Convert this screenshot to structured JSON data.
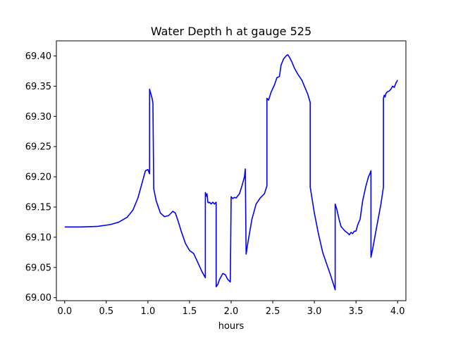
{
  "chart_data": {
    "type": "line",
    "title": "Water Depth h at gauge 525",
    "xlabel": "hours",
    "ylabel": "",
    "xlim": [
      -0.1,
      4.1
    ],
    "ylim": [
      68.995,
      69.425
    ],
    "xticks": [
      0.0,
      0.5,
      1.0,
      1.5,
      2.0,
      2.5,
      3.0,
      3.5,
      4.0
    ],
    "xtick_labels": [
      "0.0",
      "0.5",
      "1.0",
      "1.5",
      "2.0",
      "2.5",
      "3.0",
      "3.5",
      "4.0"
    ],
    "yticks": [
      69.0,
      69.05,
      69.1,
      69.15,
      69.2,
      69.25,
      69.3,
      69.35,
      69.4
    ],
    "ytick_labels": [
      "69.00",
      "69.05",
      "69.10",
      "69.15",
      "69.20",
      "69.25",
      "69.30",
      "69.35",
      "69.40"
    ],
    "grid": false,
    "series": [
      {
        "color": "#0000ff",
        "x": [
          0.0,
          0.2,
          0.4,
          0.55,
          0.65,
          0.75,
          0.82,
          0.88,
          0.93,
          0.97,
          1.0,
          1.02,
          1.02,
          1.05,
          1.06,
          1.07,
          1.1,
          1.15,
          1.2,
          1.25,
          1.3,
          1.33,
          1.36,
          1.4,
          1.45,
          1.5,
          1.55,
          1.6,
          1.65,
          1.69,
          1.69,
          1.7,
          1.71,
          1.72,
          1.73,
          1.74,
          1.76,
          1.78,
          1.8,
          1.82,
          1.82,
          1.84,
          1.86,
          1.9,
          1.93,
          1.96,
          1.99,
          2.0,
          2.02,
          2.04,
          2.06,
          2.1,
          2.13,
          2.16,
          2.17,
          2.18,
          2.2,
          2.25,
          2.3,
          2.35,
          2.4,
          2.43,
          2.43,
          2.45,
          2.48,
          2.52,
          2.55,
          2.58,
          2.6,
          2.63,
          2.66,
          2.68,
          2.7,
          2.73,
          2.76,
          2.8,
          2.85,
          2.88,
          2.92,
          2.95,
          2.95,
          3.0,
          3.05,
          3.1,
          3.15,
          3.2,
          3.25,
          3.25,
          3.27,
          3.28,
          3.3,
          3.32,
          3.35,
          3.37,
          3.4,
          3.42,
          3.44,
          3.46,
          3.48,
          3.5,
          3.52,
          3.55,
          3.58,
          3.62,
          3.65,
          3.67,
          3.68,
          3.68,
          3.7,
          3.75,
          3.8,
          3.83,
          3.83,
          3.84,
          3.85,
          3.86,
          3.88,
          3.9,
          3.92,
          3.94,
          3.96,
          3.98,
          4.0
        ],
        "y": [
          69.117,
          69.117,
          69.118,
          69.121,
          69.125,
          69.133,
          69.145,
          69.165,
          69.19,
          69.21,
          69.212,
          69.205,
          69.345,
          69.33,
          69.322,
          69.18,
          69.16,
          69.14,
          69.134,
          69.136,
          69.143,
          69.14,
          69.128,
          69.11,
          69.09,
          69.078,
          69.073,
          69.058,
          69.043,
          69.033,
          69.174,
          69.168,
          69.172,
          69.158,
          69.157,
          69.158,
          69.155,
          69.158,
          69.155,
          69.158,
          69.018,
          69.022,
          69.03,
          69.04,
          69.038,
          69.03,
          69.026,
          69.167,
          69.164,
          69.166,
          69.165,
          69.172,
          69.185,
          69.2,
          69.213,
          69.072,
          69.09,
          69.13,
          69.155,
          69.165,
          69.172,
          69.185,
          69.33,
          69.327,
          69.34,
          69.352,
          69.364,
          69.366,
          69.385,
          69.395,
          69.4,
          69.402,
          69.398,
          69.39,
          69.38,
          69.37,
          69.36,
          69.35,
          69.337,
          69.323,
          69.183,
          69.14,
          69.105,
          69.075,
          69.055,
          69.035,
          69.013,
          69.155,
          69.146,
          69.14,
          69.128,
          69.118,
          69.113,
          69.11,
          69.107,
          69.104,
          69.108,
          69.106,
          69.11,
          69.11,
          69.12,
          69.13,
          69.16,
          69.185,
          69.2,
          69.206,
          69.21,
          69.067,
          69.08,
          69.118,
          69.155,
          69.183,
          69.33,
          69.335,
          69.332,
          69.338,
          69.341,
          69.342,
          69.345,
          69.35,
          69.348,
          69.355,
          69.36
        ]
      }
    ]
  }
}
